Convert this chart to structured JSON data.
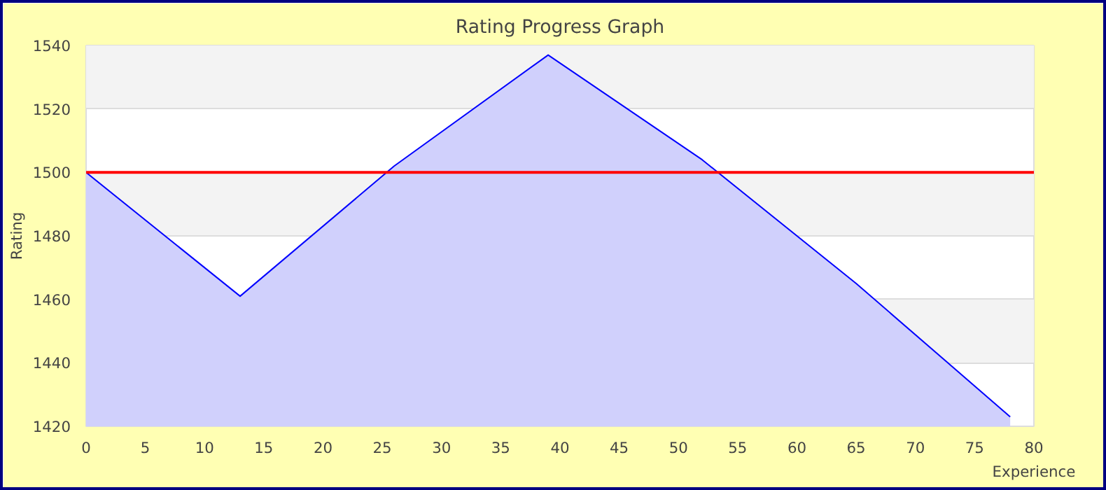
{
  "chart_data": {
    "type": "area",
    "title": "Rating Progress Graph",
    "xlabel": "Experience",
    "ylabel": "Rating",
    "x": [
      0,
      13,
      26,
      39,
      52,
      65,
      78
    ],
    "series": [
      {
        "color": "#0000ff",
        "values": [
          1500,
          1461,
          1502,
          1537,
          1504,
          1465,
          1423
        ]
      }
    ],
    "xlim": [
      0,
      80
    ],
    "xticks": [
      0,
      5,
      10,
      15,
      20,
      25,
      30,
      35,
      40,
      45,
      50,
      55,
      60,
      65,
      70,
      75,
      80
    ],
    "ylim": [
      1420,
      1540
    ],
    "yticks": [
      1420,
      1440,
      1460,
      1480,
      1500,
      1520,
      1540
    ],
    "grid": "y",
    "ref_lines": [
      {
        "axis": "y",
        "value": 1500,
        "color": "#ff0000"
      }
    ]
  }
}
